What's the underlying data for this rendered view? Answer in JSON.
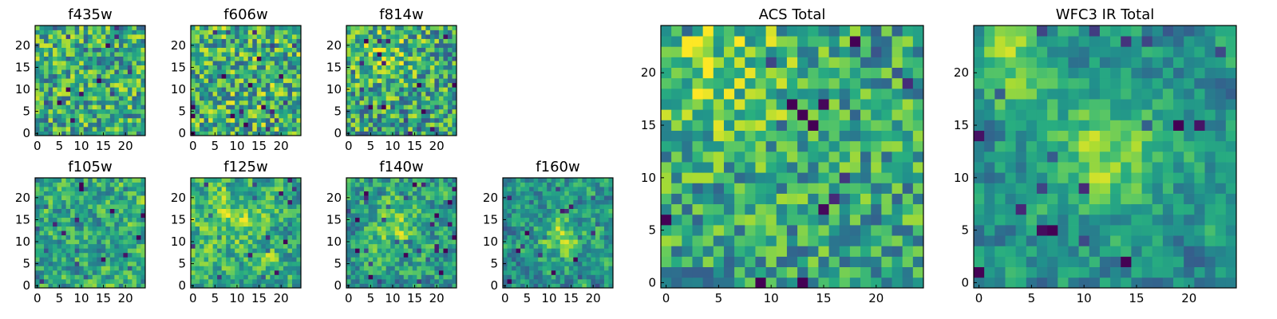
{
  "chart_data": [
    {
      "id": "f435w",
      "type": "heatmap",
      "title": "f435w",
      "grid_size": 25,
      "xlim": [
        -0.5,
        24.5
      ],
      "ylim": [
        -0.5,
        24.5
      ],
      "xticks": [
        0,
        5,
        10,
        15,
        20
      ],
      "yticks": [
        0,
        5,
        10,
        15,
        20
      ],
      "colormap": "viridis",
      "pattern": "uniform-noise",
      "value_range": [
        0,
        1
      ],
      "seed": 11,
      "mean_level": 0.62,
      "noise": 0.32,
      "blob": null,
      "smooth": 0
    },
    {
      "id": "f606w",
      "type": "heatmap",
      "title": "f606w",
      "grid_size": 25,
      "xlim": [
        -0.5,
        24.5
      ],
      "ylim": [
        -0.5,
        24.5
      ],
      "xticks": [
        0,
        5,
        10,
        15,
        20
      ],
      "yticks": [
        0,
        5,
        10,
        15,
        20
      ],
      "colormap": "viridis",
      "pattern": "uniform-noise",
      "value_range": [
        0,
        1
      ],
      "seed": 23,
      "mean_level": 0.64,
      "noise": 0.34,
      "blob": null,
      "smooth": 0
    },
    {
      "id": "f814w",
      "type": "heatmap",
      "title": "f814w",
      "grid_size": 25,
      "xlim": [
        -0.5,
        24.5
      ],
      "ylim": [
        -0.5,
        24.5
      ],
      "xticks": [
        0,
        5,
        10,
        15,
        20
      ],
      "yticks": [
        0,
        5,
        10,
        15,
        20
      ],
      "colormap": "viridis",
      "pattern": "noise-bright-top",
      "value_range": [
        0,
        1
      ],
      "seed": 37,
      "mean_level": 0.58,
      "noise": 0.34,
      "blob": {
        "cx": 8,
        "cy": 19,
        "radius": 10,
        "strength": 0.18
      },
      "smooth": 0
    },
    {
      "id": "f105w",
      "type": "heatmap",
      "title": "f105w",
      "grid_size": 25,
      "xlim": [
        -0.5,
        24.5
      ],
      "ylim": [
        -0.5,
        24.5
      ],
      "xticks": [
        0,
        5,
        10,
        15,
        20
      ],
      "yticks": [
        0,
        5,
        10,
        15,
        20
      ],
      "colormap": "viridis",
      "pattern": "smooth-noise",
      "value_range": [
        0,
        1
      ],
      "seed": 41,
      "mean_level": 0.6,
      "noise": 0.4,
      "blob": null,
      "smooth": 1
    },
    {
      "id": "f125w",
      "type": "heatmap",
      "title": "f125w",
      "grid_size": 25,
      "xlim": [
        -0.5,
        24.5
      ],
      "ylim": [
        -0.5,
        24.5
      ],
      "xticks": [
        0,
        5,
        10,
        15,
        20
      ],
      "yticks": [
        0,
        5,
        10,
        15,
        20
      ],
      "colormap": "viridis",
      "pattern": "smooth-noise",
      "value_range": [
        0,
        1
      ],
      "seed": 53,
      "mean_level": 0.64,
      "noise": 0.4,
      "blob": {
        "cx": 10,
        "cy": 17,
        "radius": 9,
        "strength": 0.12
      },
      "smooth": 1
    },
    {
      "id": "f140w",
      "type": "heatmap",
      "title": "f140w",
      "grid_size": 25,
      "xlim": [
        -0.5,
        24.5
      ],
      "ylim": [
        -0.5,
        24.5
      ],
      "xticks": [
        0,
        5,
        10,
        15,
        20
      ],
      "yticks": [
        0,
        5,
        10,
        15,
        20
      ],
      "colormap": "viridis",
      "pattern": "smooth-noise-blob",
      "value_range": [
        0,
        1
      ],
      "seed": 67,
      "mean_level": 0.56,
      "noise": 0.38,
      "blob": {
        "cx": 10,
        "cy": 14,
        "radius": 8,
        "strength": 0.25
      },
      "smooth": 1
    },
    {
      "id": "f160w",
      "type": "heatmap",
      "title": "f160w",
      "grid_size": 25,
      "xlim": [
        -0.5,
        24.5
      ],
      "ylim": [
        -0.5,
        24.5
      ],
      "xticks": [
        0,
        5,
        10,
        15,
        20
      ],
      "yticks": [
        0,
        5,
        10,
        15,
        20
      ],
      "colormap": "viridis",
      "pattern": "smooth-noise-diagonal",
      "value_range": [
        0,
        1
      ],
      "seed": 79,
      "mean_level": 0.52,
      "noise": 0.36,
      "blob": {
        "cx": 13,
        "cy": 11,
        "radius": 7,
        "strength": 0.3
      },
      "smooth": 1
    },
    {
      "id": "acs-total",
      "type": "heatmap",
      "title": "ACS Total",
      "grid_size": 25,
      "xlim": [
        -0.5,
        24.5
      ],
      "ylim": [
        -0.5,
        24.5
      ],
      "xticks": [
        0,
        5,
        10,
        15,
        20
      ],
      "yticks": [
        0,
        5,
        10,
        15,
        20
      ],
      "colormap": "viridis",
      "pattern": "noise-bright-upper-left",
      "value_range": [
        0,
        1
      ],
      "seed": 97,
      "mean_level": 0.58,
      "noise": 0.28,
      "blob": {
        "cx": 5,
        "cy": 21,
        "radius": 12,
        "strength": 0.2
      },
      "smooth": 0
    },
    {
      "id": "wfc3-ir-total",
      "type": "heatmap",
      "title": "WFC3 IR Total",
      "grid_size": 25,
      "xlim": [
        -0.5,
        24.5
      ],
      "ylim": [
        -0.5,
        24.5
      ],
      "xticks": [
        0,
        5,
        10,
        15,
        20
      ],
      "yticks": [
        0,
        5,
        10,
        15,
        20
      ],
      "colormap": "viridis",
      "pattern": "smooth-noise-two-blobs",
      "value_range": [
        0,
        1
      ],
      "seed": 113,
      "mean_level": 0.5,
      "noise": 0.3,
      "blob": {
        "cx": 12,
        "cy": 12,
        "radius": 8,
        "strength": 0.3
      },
      "blob2": {
        "cx": 3,
        "cy": 21,
        "radius": 6,
        "strength": 0.3
      },
      "smooth": 1
    }
  ]
}
